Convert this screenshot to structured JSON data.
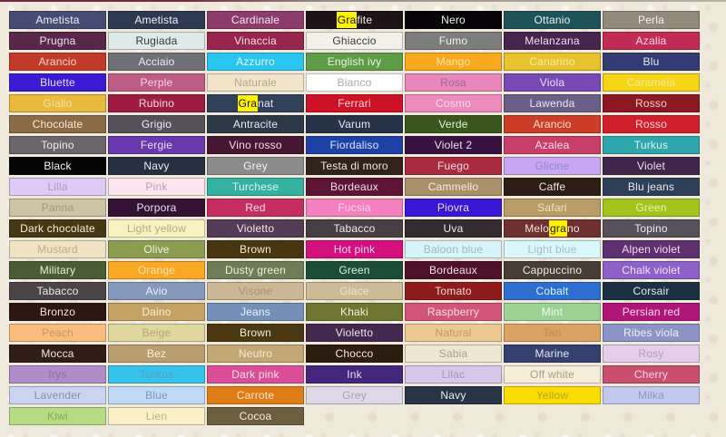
{
  "page": {
    "description": "Color palette picker grid with search highlight",
    "background_color": "#efe9dc",
    "top_border_left_color": "#6e2d3e",
    "top_border_right_color": "#b9b2a4"
  },
  "highlight": {
    "query": "gra",
    "color": "#fff200",
    "text_color": "#1a1a1a"
  },
  "grid": {
    "columns": 7,
    "rows": [
      [
        {
          "label": "Ametista",
          "bg": "#474c74",
          "fg": "#f2f2f8"
        },
        {
          "label": "Ametista",
          "bg": "#2c3951",
          "fg": "#f2f2f8"
        },
        {
          "label": "Cardinale",
          "bg": "#8c3c6c",
          "fg": "#f6e8f0"
        },
        {
          "label": "Grafite",
          "bg": "#1e1317",
          "fg": "#f2f2f2",
          "highlight": {
            "pre": "",
            "match": "Gra",
            "post": "fite"
          }
        },
        {
          "label": "Nero",
          "bg": "#060406",
          "fg": "#f2f2f2"
        },
        {
          "label": "Ottanio",
          "bg": "#1e535c",
          "fg": "#e8f2f2"
        },
        {
          "label": "Perla",
          "bg": "#938a7e",
          "fg": "#f5f2ec"
        }
      ],
      [
        {
          "label": "Prugna",
          "bg": "#582749",
          "fg": "#f2e4ee"
        },
        {
          "label": "Rugiada",
          "bg": "#dee9e9",
          "fg": "#35393b"
        },
        {
          "label": "Vinaccia",
          "bg": "#97264f",
          "fg": "#f6e0ea"
        },
        {
          "label": "Ghiaccio",
          "bg": "#f1f1ea",
          "fg": "#3a3a38"
        },
        {
          "label": "Fumo",
          "bg": "#7d7d7d",
          "fg": "#f2f2f2"
        },
        {
          "label": "Melanzana",
          "bg": "#46264e",
          "fg": "#ece0f0"
        },
        {
          "label": "Azalia",
          "bg": "#c22b56",
          "fg": "#f9dde8"
        }
      ],
      [
        {
          "label": "Arancio",
          "bg": "#c23a28",
          "fg": "#f8d8c8"
        },
        {
          "label": "Acciaio",
          "bg": "#6f6f77",
          "fg": "#eeeef2"
        },
        {
          "label": "Azzurro",
          "bg": "#29c5ee",
          "fg": "#e4f8fd"
        },
        {
          "label": "English ivy",
          "bg": "#5f9c48",
          "fg": "#eaf5e4"
        },
        {
          "label": "Mango",
          "bg": "#f7a81b",
          "fg": "#fde3ae"
        },
        {
          "label": "Canarino",
          "bg": "#e7c32e",
          "fg": "#f7e9a5"
        },
        {
          "label": "Blu",
          "bg": "#333c72",
          "fg": "#e6e8f5"
        }
      ],
      [
        {
          "label": "Bluette",
          "bg": "#3a1bd3",
          "fg": "#e4e0fa"
        },
        {
          "label": "Perple",
          "bg": "#bf5c85",
          "fg": "#f4d6e2"
        },
        {
          "label": "Naturale",
          "bg": "#f2e4c9",
          "fg": "#b5a888"
        },
        {
          "label": "Bianco",
          "bg": "#fefefe",
          "fg": "#ababab"
        },
        {
          "label": "Rosa",
          "bg": "#e987bd",
          "fg": "#a06888"
        },
        {
          "label": "Viola",
          "bg": "#7849b5",
          "fg": "#ece2f8"
        },
        {
          "label": "Caramela",
          "bg": "#f6d517",
          "fg": "#f6e9a0"
        }
      ],
      [
        {
          "label": "Giallo",
          "bg": "#e9b93c",
          "fg": "#f6e3b0"
        },
        {
          "label": "Rubino",
          "bg": "#9c1b3f",
          "fg": "#f8dce5"
        },
        {
          "label": "Granat",
          "bg": "#32415a",
          "fg": "#e8ecf2",
          "highlight": {
            "pre": "",
            "match": "Gra",
            "post": "nat"
          }
        },
        {
          "label": "Ferrari",
          "bg": "#ce1126",
          "fg": "#fadada"
        },
        {
          "label": "Cosmo",
          "bg": "#ee8bbe",
          "fg": "#fbdfee"
        },
        {
          "label": "Lawenda",
          "bg": "#6a5e88",
          "fg": "#ece8f4"
        },
        {
          "label": "Rosso",
          "bg": "#8c1823",
          "fg": "#f5cfcf"
        }
      ],
      [
        {
          "label": "Chocolate",
          "bg": "#8a6b45",
          "fg": "#f5ecdc"
        },
        {
          "label": "Grigio",
          "bg": "#55505a",
          "fg": "#eeeef0"
        },
        {
          "label": "Antracite",
          "bg": "#2e3947",
          "fg": "#e8ecf0"
        },
        {
          "label": "Varum",
          "bg": "#253247",
          "fg": "#e6eaf0"
        },
        {
          "label": "Verde",
          "bg": "#3b551f",
          "fg": "#e8f0dc"
        },
        {
          "label": "Arancio",
          "bg": "#cc3d28",
          "fg": "#fadfd6"
        },
        {
          "label": "Rosso",
          "bg": "#d21f2e",
          "fg": "#fadada"
        }
      ],
      [
        {
          "label": "Topino",
          "bg": "#6b666b",
          "fg": "#f0eef0"
        },
        {
          "label": "Fergie",
          "bg": "#6839ae",
          "fg": "#e9e0f6"
        },
        {
          "label": "Vino rosso",
          "bg": "#481733",
          "fg": "#f2dce8"
        },
        {
          "label": "Fiordaliso",
          "bg": "#1e41a8",
          "fg": "#dde6f8"
        },
        {
          "label": "Violet 2",
          "bg": "#371240",
          "fg": "#ecdff2"
        },
        {
          "label": "Azalea",
          "bg": "#c73e6b",
          "fg": "#f9dde8"
        },
        {
          "label": "Turkus",
          "bg": "#2fa6ab",
          "fg": "#e0f5f5"
        }
      ],
      [
        {
          "label": "Black",
          "bg": "#050505",
          "fg": "#f2f2f2"
        },
        {
          "label": "Navy",
          "bg": "#273040",
          "fg": "#e8ecf2"
        },
        {
          "label": "Grey",
          "bg": "#8c8c8c",
          "fg": "#f4f4f4"
        },
        {
          "label": "Testa di moro",
          "bg": "#31221a",
          "fg": "#f0e8e0"
        },
        {
          "label": "Fuego",
          "bg": "#a82b40",
          "fg": "#f8dce2"
        },
        {
          "label": "Glicine",
          "bg": "#c9a6f5",
          "fg": "#9286c8"
        },
        {
          "label": "Violet",
          "bg": "#40264a",
          "fg": "#eee2f4"
        }
      ],
      [
        {
          "label": "Lilla",
          "bg": "#dfc9f5",
          "fg": "#af97ce"
        },
        {
          "label": "Pink",
          "bg": "#fbe5ee",
          "fg": "#bba3b0"
        },
        {
          "label": "Turchese",
          "bg": "#35b1a2",
          "fg": "#e0f5f0"
        },
        {
          "label": "Bordeaux",
          "bg": "#5c1535",
          "fg": "#f2dce8"
        },
        {
          "label": "Cammello",
          "bg": "#a8906b",
          "fg": "#f6eedc"
        },
        {
          "label": "Caffe",
          "bg": "#2e1d15",
          "fg": "#f0e8e0"
        },
        {
          "label": "Blu jeans",
          "bg": "#2e4057",
          "fg": "#e6ecf2"
        }
      ],
      [
        {
          "label": "Panna",
          "bg": "#cdc3a5",
          "fg": "#a3987a"
        },
        {
          "label": "Porpora",
          "bg": "#331234",
          "fg": "#eee0f0"
        },
        {
          "label": "Red",
          "bg": "#c52d63",
          "fg": "#f9dde8"
        },
        {
          "label": "Fucsia",
          "bg": "#f480c0",
          "fg": "#fbd8ec"
        },
        {
          "label": "Piovra",
          "bg": "#3a17d4",
          "fg": "#e4e0fa"
        },
        {
          "label": "Safari",
          "bg": "#b99c67",
          "fg": "#f2e3bb"
        },
        {
          "label": "Green",
          "bg": "#a4c41d",
          "fg": "#e9f5b0"
        }
      ],
      [
        {
          "label": "Dark chocolate",
          "bg": "#453813",
          "fg": "#f2ecda"
        },
        {
          "label": "Light yellow",
          "bg": "#f7f2c0",
          "fg": "#b3ac7e"
        },
        {
          "label": "Violetto",
          "bg": "#543b56",
          "fg": "#f0e4f0"
        },
        {
          "label": "Tabacco",
          "bg": "#473f45",
          "fg": "#eeeaec"
        },
        {
          "label": "Uva",
          "bg": "#332b30",
          "fg": "#eeeaec"
        },
        {
          "label": "Melograno",
          "bg": "#6f3031",
          "fg": "#f6dede",
          "highlight": {
            "pre": "Melo",
            "match": "gra",
            "post": "no"
          }
        },
        {
          "label": "Topino",
          "bg": "#575159",
          "fg": "#eeecf0"
        }
      ],
      [
        {
          "label": "Mustard",
          "bg": "#efe3c3",
          "fg": "#bbae8c"
        },
        {
          "label": "Olive",
          "bg": "#8c9c50",
          "fg": "#f0f4e0"
        },
        {
          "label": "Brown",
          "bg": "#473610",
          "fg": "#f2ecda"
        },
        {
          "label": "Hot pink",
          "bg": "#d4107e",
          "fg": "#fbd8ec"
        },
        {
          "label": "Baloon blue",
          "bg": "#d6f4fa",
          "fg": "#9eb8c4"
        },
        {
          "label": "Light blue",
          "bg": "#dcf7fc",
          "fg": "#a2bcc8"
        },
        {
          "label": "Alpen violet",
          "bg": "#5e3070",
          "fg": "#eee0f4"
        }
      ],
      [
        {
          "label": "Military",
          "bg": "#4a5c33",
          "fg": "#e8f0d8"
        },
        {
          "label": "Orange",
          "bg": "#f9a825",
          "fg": "#fde3b0"
        },
        {
          "label": "Dusty green",
          "bg": "#6e7d57",
          "fg": "#eaf0de"
        },
        {
          "label": "Green",
          "bg": "#1c4d36",
          "fg": "#def0e6"
        },
        {
          "label": "Bordeaux",
          "bg": "#4d1229",
          "fg": "#f2dce6"
        },
        {
          "label": "Cappuccino",
          "bg": "#473c36",
          "fg": "#f0eae6"
        },
        {
          "label": "Chalk violet",
          "bg": "#8e60c8",
          "fg": "#f0e6fa"
        }
      ],
      [
        {
          "label": "Tabacco",
          "bg": "#4c4547",
          "fg": "#eeeaec"
        },
        {
          "label": "Avio",
          "bg": "#8498bc",
          "fg": "#f0f4fa"
        },
        {
          "label": "Visone",
          "bg": "#cbb795",
          "fg": "#a89272"
        },
        {
          "label": "Glace",
          "bg": "#cdbb98",
          "fg": "#ede3c6"
        },
        {
          "label": "Tomato",
          "bg": "#8e1c1c",
          "fg": "#f6d8d8"
        },
        {
          "label": "Cobalt",
          "bg": "#2d6ed0",
          "fg": "#def5ff"
        },
        {
          "label": "Corsair",
          "bg": "#1c3044",
          "fg": "#e2eaf2"
        }
      ],
      [
        {
          "label": "Bronzo",
          "bg": "#2e1710",
          "fg": "#f0e6e0"
        },
        {
          "label": "Daino",
          "bg": "#c3a263",
          "fg": "#fcf2d8"
        },
        {
          "label": "Jeans",
          "bg": "#7290b8",
          "fg": "#eef4fa"
        },
        {
          "label": "Khaki",
          "bg": "#70762f",
          "fg": "#f0f2da"
        },
        {
          "label": "Raspberry",
          "bg": "#d05578",
          "fg": "#fadfe8"
        },
        {
          "label": "Mint",
          "bg": "#9ed294",
          "fg": "#f0faec"
        },
        {
          "label": "Persian red",
          "bg": "#b01677",
          "fg": "#f8dcee"
        }
      ],
      [
        {
          "label": "Peach",
          "bg": "#f8bc7d",
          "fg": "#c89868"
        },
        {
          "label": "Beige",
          "bg": "#dfd79e",
          "fg": "#b0a878"
        },
        {
          "label": "Brown",
          "bg": "#493812",
          "fg": "#f2ecda"
        },
        {
          "label": "Violetto",
          "bg": "#432950",
          "fg": "#eee2f4"
        },
        {
          "label": "Natural",
          "bg": "#ecc893",
          "fg": "#c09a63"
        },
        {
          "label": "Tan",
          "bg": "#dca263",
          "fg": "#c08848"
        },
        {
          "label": "Ribes viola",
          "bg": "#8c93c6",
          "fg": "#f0f2fa"
        }
      ],
      [
        {
          "label": "Mocca",
          "bg": "#301e16",
          "fg": "#f0e8e2"
        },
        {
          "label": "Bez",
          "bg": "#b89e6e",
          "fg": "#fcf2d8"
        },
        {
          "label": "Neutro",
          "bg": "#c3a876",
          "fg": "#f5ead0"
        },
        {
          "label": "Chocco",
          "bg": "#2d1c10",
          "fg": "#f0e8e0"
        },
        {
          "label": "Sabia",
          "bg": "#efe8d0",
          "fg": "#a8a090"
        },
        {
          "label": "Marine",
          "bg": "#35406e",
          "fg": "#e6eaf6"
        },
        {
          "label": "Rosy",
          "bg": "#e3cfeb",
          "fg": "#b49cc0"
        }
      ],
      [
        {
          "label": "Irys",
          "bg": "#b08cc8",
          "fg": "#8a6fa8"
        },
        {
          "label": "Turkus",
          "bg": "#35c3ec",
          "fg": "#58a0c4"
        },
        {
          "label": "Dark pink",
          "bg": "#da4e97",
          "fg": "#fbdcee"
        },
        {
          "label": "Ink",
          "bg": "#44267c",
          "fg": "#e8e0f6"
        },
        {
          "label": "Lilac",
          "bg": "#d7c7e9",
          "fg": "#a996c0"
        },
        {
          "label": "Off white",
          "bg": "#f5edd7",
          "fg": "#a8a08c"
        },
        {
          "label": "Cherry",
          "bg": "#c84f70",
          "fg": "#f8d8e0"
        }
      ],
      [
        {
          "label": "Lavender",
          "bg": "#cad4f0",
          "fg": "#8c93a8"
        },
        {
          "label": "Blue",
          "bg": "#bfd9f5",
          "fg": "#7c9cc0"
        },
        {
          "label": "Carrote",
          "bg": "#de7c17",
          "fg": "#fce8d0"
        },
        {
          "label": "Grey",
          "bg": "#dfd8e8",
          "fg": "#a8a0b0"
        },
        {
          "label": "Navy",
          "bg": "#2a3447",
          "fg": "#e8ecf2"
        },
        {
          "label": "Yellow",
          "bg": "#fadc00",
          "fg": "#b8a428"
        },
        {
          "label": "Milka",
          "bg": "#c3c8ef",
          "fg": "#9398c0"
        }
      ],
      [
        {
          "label": "Kiwi",
          "bg": "#b5dc85",
          "fg": "#84a858"
        },
        {
          "label": "Lien",
          "bg": "#fbefc8",
          "fg": "#c0b088"
        },
        {
          "label": "Cocoa",
          "bg": "#6e5e40",
          "fg": "#f4eee0"
        }
      ]
    ]
  }
}
